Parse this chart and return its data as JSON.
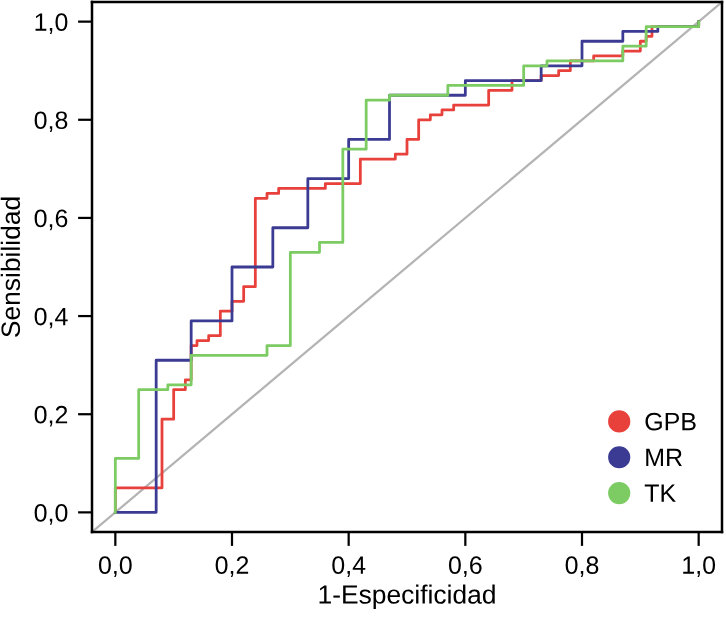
{
  "chart_data": {
    "type": "step",
    "xlabel": "1-Especificidad",
    "ylabel": "Sensibilidad",
    "xlim": [
      -0.04,
      1.04
    ],
    "ylim": [
      -0.04,
      1.04
    ],
    "xticks": [
      {
        "value": 0,
        "label": "0,0"
      },
      {
        "value": 0.2,
        "label": "0,2"
      },
      {
        "value": 0.4,
        "label": "0,4"
      },
      {
        "value": 0.6,
        "label": "0,6"
      },
      {
        "value": 0.8,
        "label": "0,8"
      },
      {
        "value": 1,
        "label": "1,0"
      }
    ],
    "yticks": [
      {
        "value": 0,
        "label": "0,0"
      },
      {
        "value": 0.2,
        "label": "0,2"
      },
      {
        "value": 0.4,
        "label": "0,4"
      },
      {
        "value": 0.6,
        "label": "0,6"
      },
      {
        "value": 0.8,
        "label": "0,8"
      },
      {
        "value": 1,
        "label": "1,0"
      }
    ],
    "grid": false,
    "legend": "bottom right",
    "marker": "none",
    "series": [
      {
        "type": "line",
        "color": "#b4b4b4",
        "x": [
          -0.04,
          1.04
        ],
        "values": [
          -0.04,
          1.04
        ]
      },
      {
        "name": "GPB",
        "color": "#e8413c",
        "x": [
          0,
          0,
          0.08,
          0.1,
          0.12,
          0.13,
          0.14,
          0.16,
          0.18,
          0.2,
          0.22,
          0.24,
          0.26,
          0.28,
          0.36,
          0.42,
          0.48,
          0.5,
          0.52,
          0.54,
          0.56,
          0.58,
          0.64,
          0.68,
          0.73,
          0.76,
          0.78,
          0.82,
          0.87,
          0.9,
          0.91,
          0.92,
          1.0
        ],
        "values": [
          0,
          0.05,
          0.19,
          0.25,
          0.27,
          0.34,
          0.35,
          0.36,
          0.41,
          0.43,
          0.46,
          0.64,
          0.65,
          0.66,
          0.67,
          0.72,
          0.73,
          0.76,
          0.8,
          0.81,
          0.82,
          0.83,
          0.86,
          0.88,
          0.89,
          0.9,
          0.92,
          0.93,
          0.94,
          0.96,
          0.97,
          0.99,
          1.0
        ]
      },
      {
        "name": "MR",
        "color": "#3b3b94",
        "x": [
          0,
          0.07,
          0.13,
          0.2,
          0.27,
          0.33,
          0.4,
          0.47,
          0.6,
          0.73,
          0.8,
          0.87,
          0.93,
          1.0
        ],
        "values": [
          0,
          0.31,
          0.39,
          0.5,
          0.58,
          0.68,
          0.76,
          0.85,
          0.88,
          0.91,
          0.96,
          0.98,
          0.99,
          1.0
        ]
      },
      {
        "name": "TK",
        "color": "#7ccc63",
        "x": [
          0,
          0,
          0.04,
          0.09,
          0.13,
          0.26,
          0.3,
          0.35,
          0.39,
          0.43,
          0.47,
          0.57,
          0.7,
          0.74,
          0.87,
          0.91,
          1.0
        ],
        "values": [
          0,
          0.11,
          0.25,
          0.26,
          0.32,
          0.34,
          0.53,
          0.55,
          0.74,
          0.84,
          0.85,
          0.87,
          0.91,
          0.92,
          0.95,
          0.99,
          1.0
        ]
      }
    ]
  }
}
